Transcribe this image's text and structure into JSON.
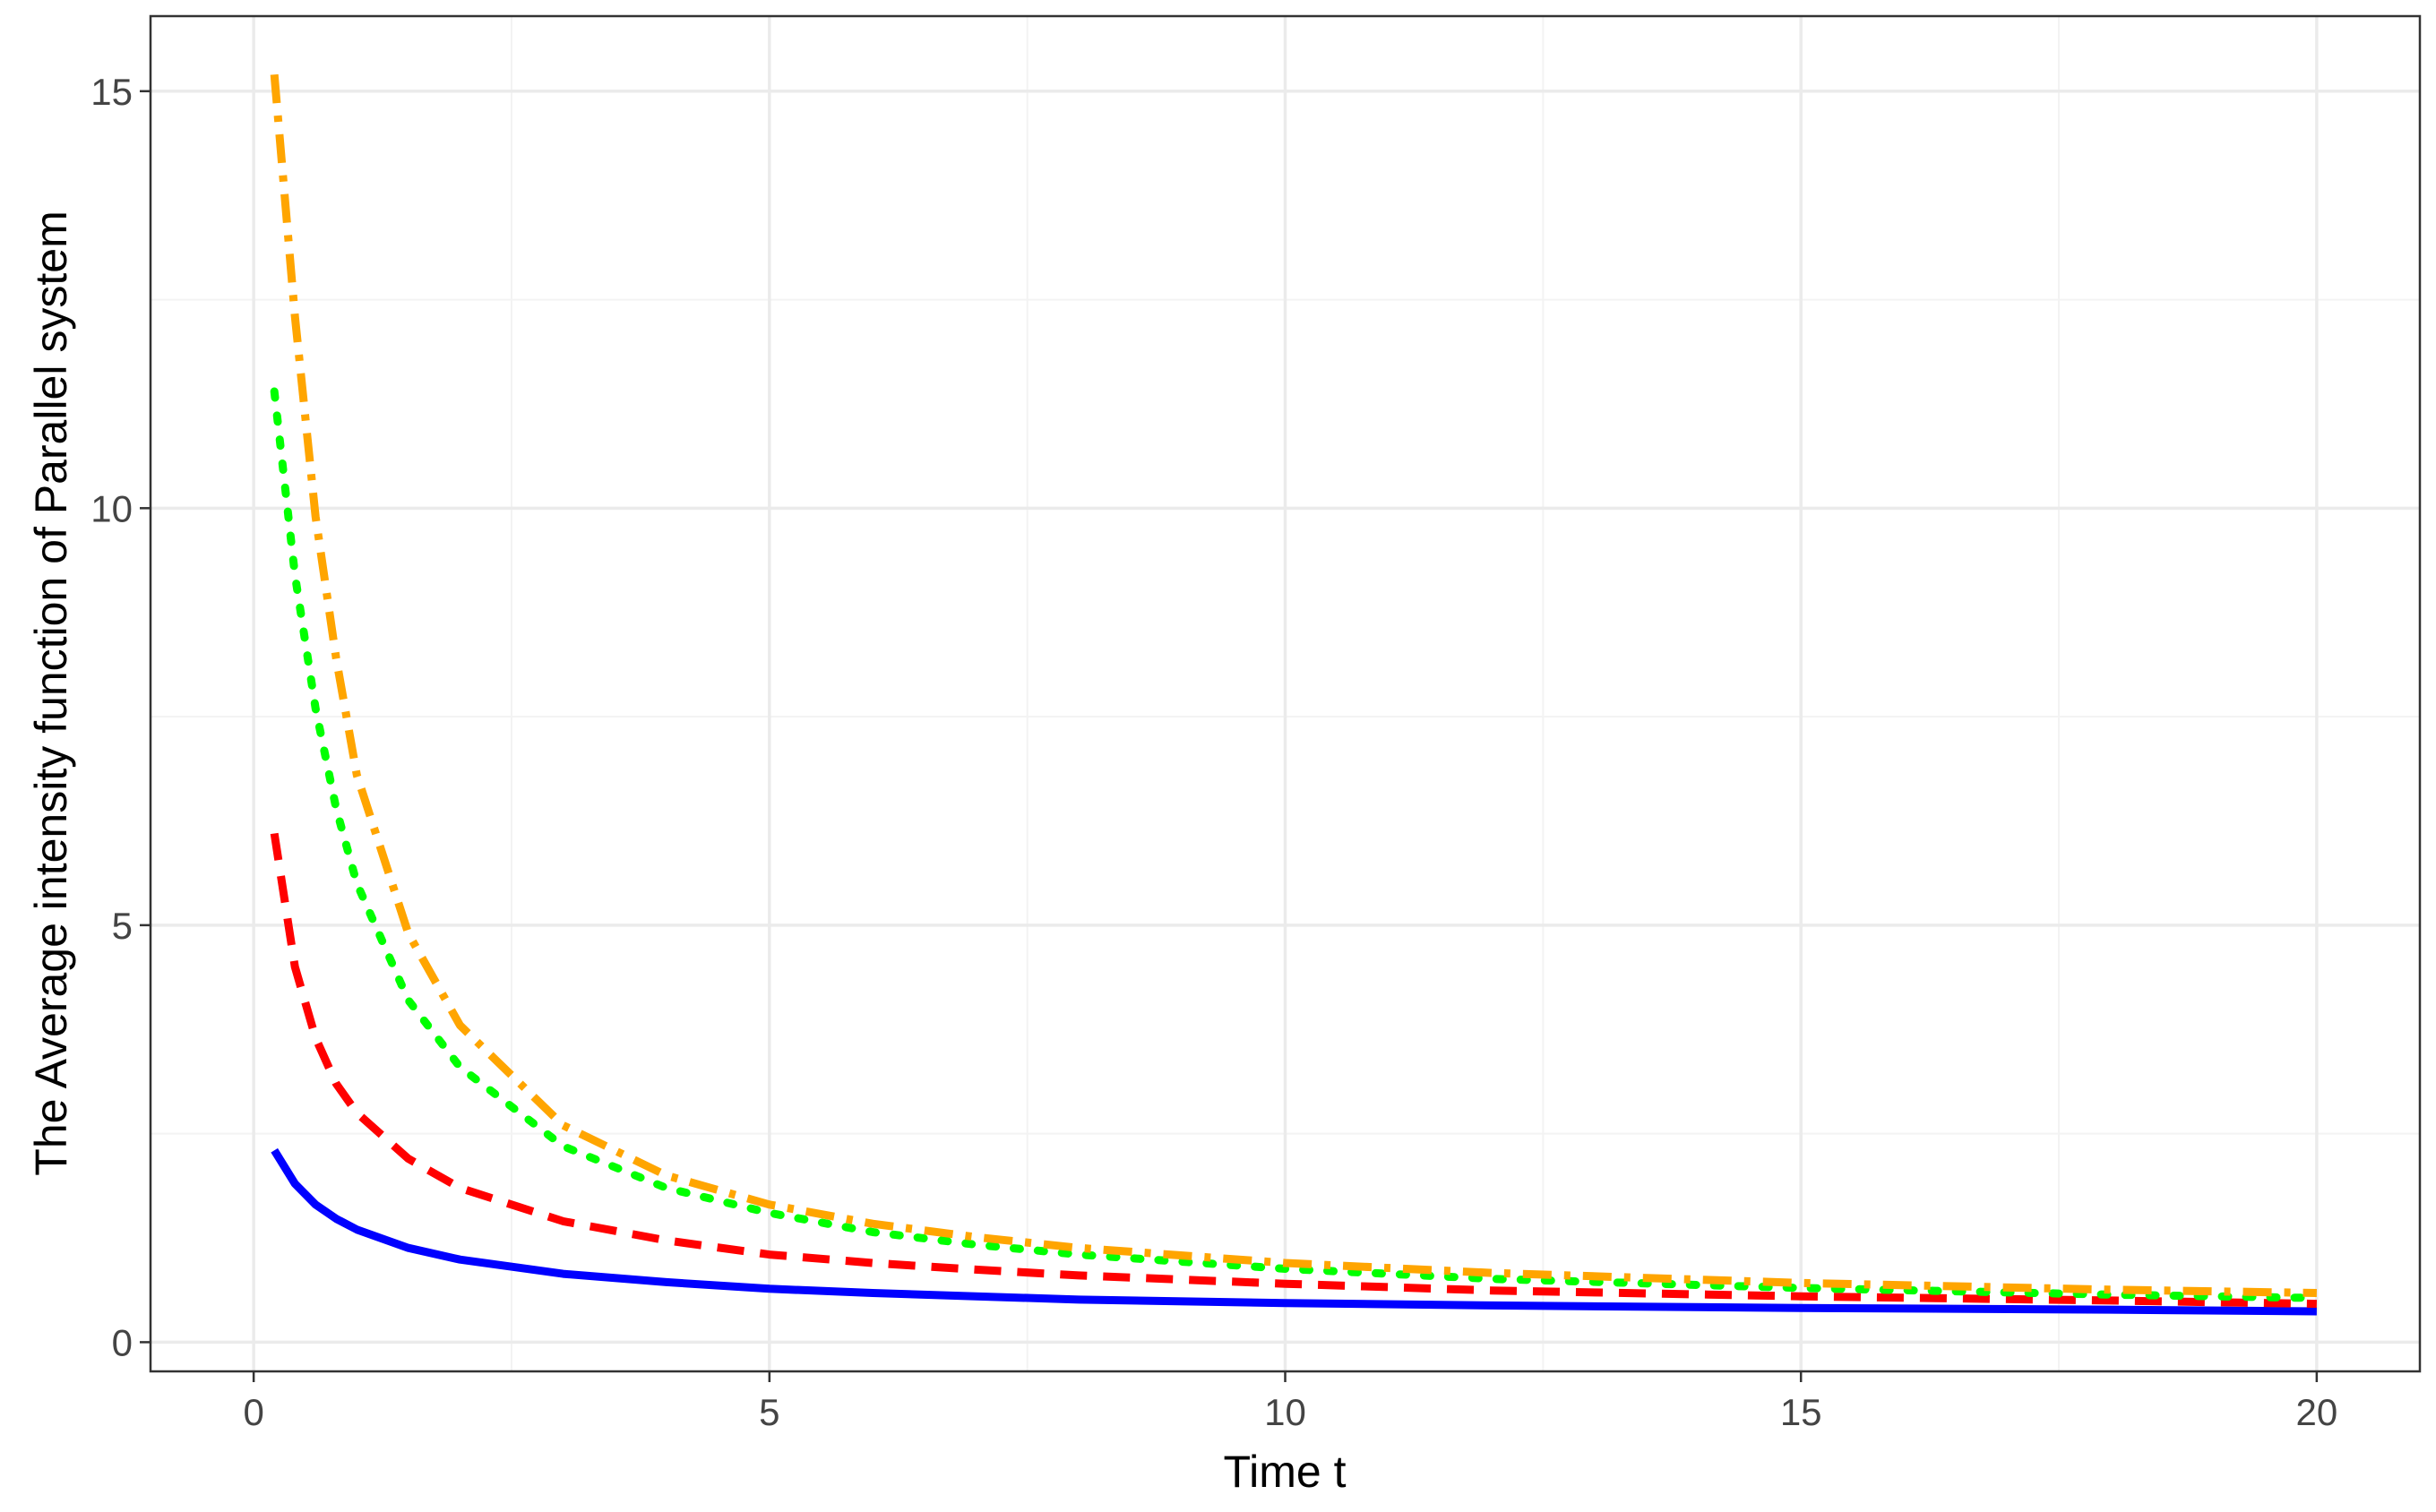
{
  "chart_data": {
    "type": "line",
    "title": "",
    "xlabel": "Time t",
    "ylabel": "The Average intensity function of Parallel system",
    "xlim": [
      -1,
      21
    ],
    "ylim": [
      -0.35,
      15.9
    ],
    "x_ticks": [
      0,
      5,
      10,
      15,
      20
    ],
    "y_ticks": [
      0,
      5,
      10,
      15
    ],
    "x_tick_labels": [
      "0",
      "5",
      "10",
      "15",
      "20"
    ],
    "y_tick_labels": [
      "0",
      "5",
      "10",
      "15"
    ],
    "grid": true,
    "legend": "none",
    "series": [
      {
        "color": "#0000ff",
        "dash": "solid",
        "points": [
          [
            0.2,
            2.3
          ],
          [
            0.4,
            1.9
          ],
          [
            0.6,
            1.65
          ],
          [
            0.8,
            1.48
          ],
          [
            1.0,
            1.35
          ],
          [
            1.5,
            1.13
          ],
          [
            2.0,
            0.99
          ],
          [
            3.0,
            0.82
          ],
          [
            4.0,
            0.72
          ],
          [
            5.0,
            0.64
          ],
          [
            6.0,
            0.59
          ],
          [
            7.0,
            0.55
          ],
          [
            8.0,
            0.51
          ],
          [
            10.0,
            0.47
          ],
          [
            12.0,
            0.44
          ],
          [
            15.0,
            0.41
          ],
          [
            18.0,
            0.39
          ],
          [
            20.0,
            0.37
          ]
        ]
      },
      {
        "color": "#ff0000",
        "dash": "dashed",
        "points": [
          [
            0.2,
            6.1
          ],
          [
            0.4,
            4.5
          ],
          [
            0.6,
            3.65
          ],
          [
            0.8,
            3.1
          ],
          [
            1.0,
            2.75
          ],
          [
            1.5,
            2.2
          ],
          [
            2.0,
            1.85
          ],
          [
            3.0,
            1.45
          ],
          [
            4.0,
            1.22
          ],
          [
            5.0,
            1.05
          ],
          [
            6.0,
            0.95
          ],
          [
            7.0,
            0.87
          ],
          [
            8.0,
            0.8
          ],
          [
            10.0,
            0.7
          ],
          [
            12.0,
            0.62
          ],
          [
            15.0,
            0.55
          ],
          [
            18.0,
            0.5
          ],
          [
            20.0,
            0.46
          ]
        ]
      },
      {
        "color": "#00ff00",
        "dash": "dotted",
        "points": [
          [
            0.2,
            11.4
          ],
          [
            0.4,
            9.2
          ],
          [
            0.6,
            7.6
          ],
          [
            0.8,
            6.4
          ],
          [
            1.0,
            5.5
          ],
          [
            1.5,
            4.1
          ],
          [
            2.0,
            3.3
          ],
          [
            3.0,
            2.35
          ],
          [
            4.0,
            1.85
          ],
          [
            5.0,
            1.55
          ],
          [
            6.0,
            1.32
          ],
          [
            7.0,
            1.17
          ],
          [
            8.0,
            1.05
          ],
          [
            10.0,
            0.88
          ],
          [
            12.0,
            0.76
          ],
          [
            15.0,
            0.65
          ],
          [
            18.0,
            0.57
          ],
          [
            20.0,
            0.53
          ]
        ]
      },
      {
        "color": "#ffa500",
        "dash": "dotdash",
        "points": [
          [
            0.2,
            15.2
          ],
          [
            0.4,
            12.3
          ],
          [
            0.6,
            9.9
          ],
          [
            0.8,
            8.2
          ],
          [
            1.0,
            6.8
          ],
          [
            1.5,
            4.9
          ],
          [
            2.0,
            3.8
          ],
          [
            3.0,
            2.6
          ],
          [
            4.0,
            2.0
          ],
          [
            5.0,
            1.65
          ],
          [
            6.0,
            1.42
          ],
          [
            7.0,
            1.26
          ],
          [
            8.0,
            1.13
          ],
          [
            10.0,
            0.95
          ],
          [
            12.0,
            0.83
          ],
          [
            15.0,
            0.71
          ],
          [
            18.0,
            0.63
          ],
          [
            20.0,
            0.59
          ]
        ]
      }
    ]
  }
}
